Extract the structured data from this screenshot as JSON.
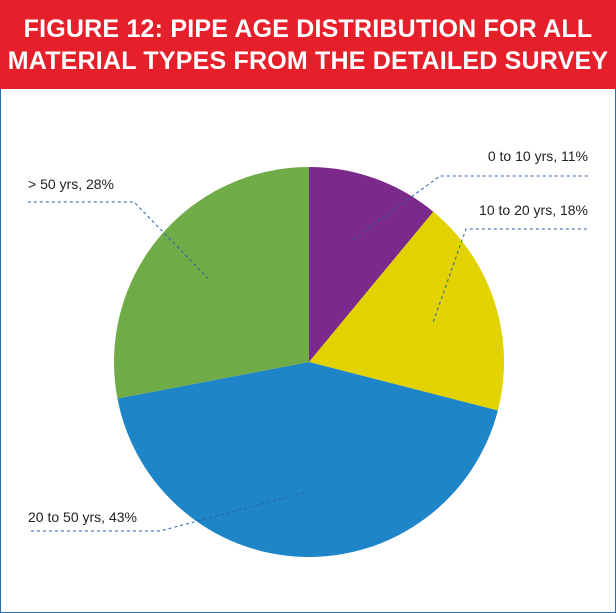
{
  "title": {
    "line1": "FIGURE 12:  PIPE AGE DISTRIBUTION FOR ALL",
    "line2": "MATERIAL TYPES FROM THE DETAILED SURVEY"
  },
  "colors": {
    "header_bg": "#e5202a",
    "border": "#2a6fb5"
  },
  "chart_data": {
    "type": "pie",
    "title": "FIGURE 12:  PIPE AGE DISTRIBUTION FOR ALL MATERIAL TYPES FROM THE DETAILED SURVEY",
    "slices": [
      {
        "label": "0 to 10 yrs",
        "value": 11,
        "color": "#7b2a8c",
        "text": "0 to 10 yrs, 11%"
      },
      {
        "label": "10 to 20 yrs",
        "value": 18,
        "color": "#e2d200",
        "text": "10 to 20 yrs, 18%"
      },
      {
        "label": "20 to 50 yrs",
        "value": 43,
        "color": "#1e86c8",
        "text": "20 to 50 yrs, 43%"
      },
      {
        "label": "> 50 yrs",
        "value": 28,
        "color": "#6fac47",
        "text": "> 50 yrs, 28%"
      }
    ],
    "start": "12 o'clock",
    "direction": "clockwise",
    "legend": "none (callout labels)"
  }
}
